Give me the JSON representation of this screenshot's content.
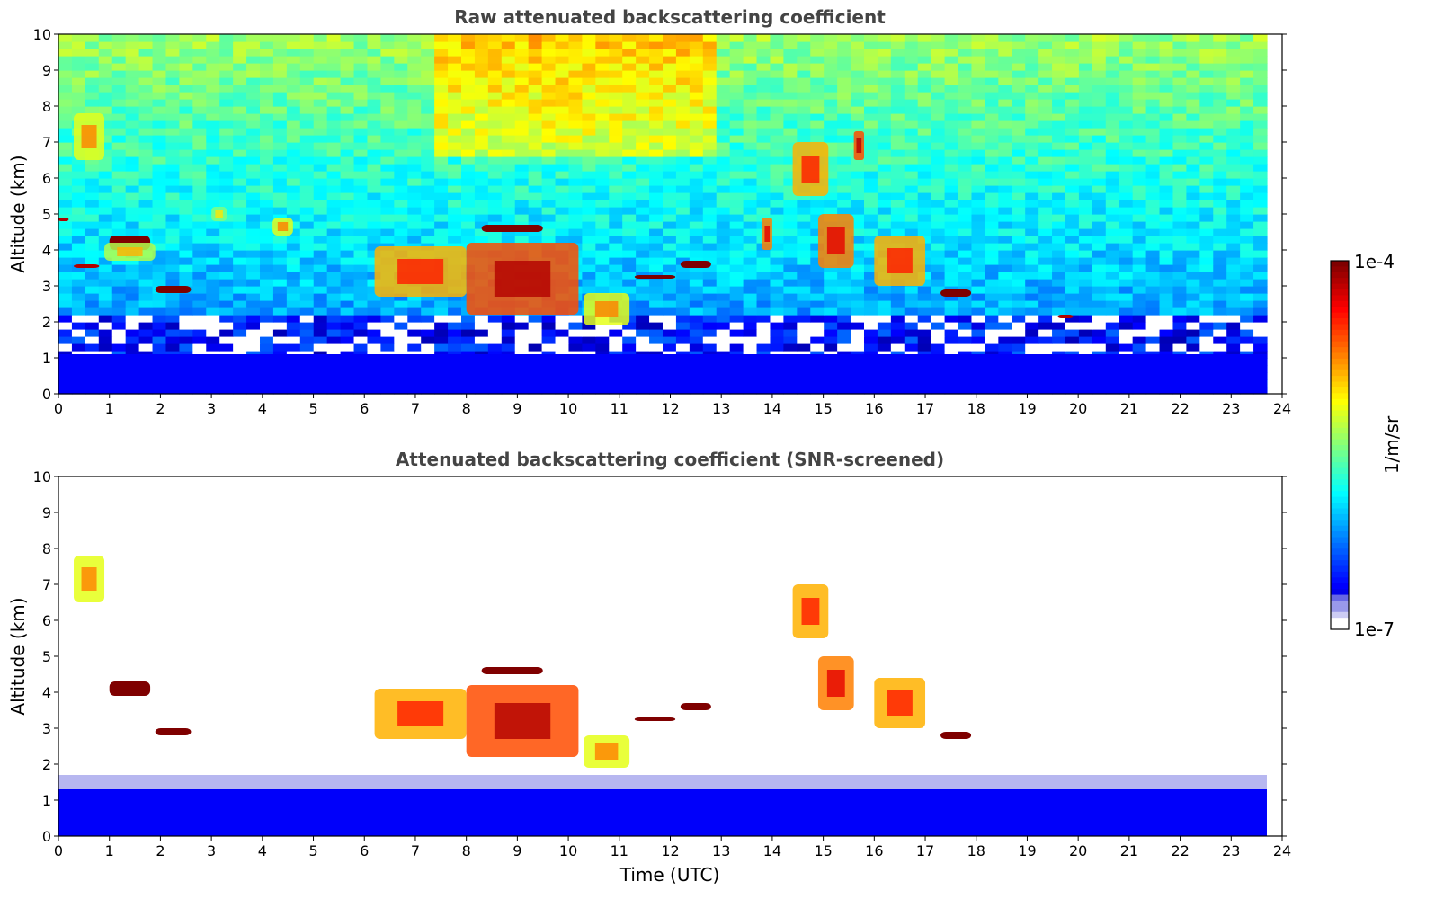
{
  "colors": {
    "jet": [
      "#00007f",
      "#0000ff",
      "#007fff",
      "#00ffff",
      "#7fff7f",
      "#ffff00",
      "#ff7f00",
      "#ff0000",
      "#7f0000"
    ],
    "faint": [
      "#ffffff",
      "#ccccf4",
      "#9999ea",
      "#6666e4"
    ]
  },
  "colorbar": {
    "label": "1/m/sr",
    "max_label": "1e-4",
    "min_label": "1e-7",
    "scale": "log",
    "range": [
      1e-07,
      0.0001
    ]
  },
  "chart_data": [
    {
      "type": "heatmap",
      "title": "Raw attenuated backscattering coefficient",
      "xlabel": "",
      "ylabel": "Altitude (km)",
      "xlim": [
        0,
        24
      ],
      "ylim": [
        0,
        10
      ],
      "xticks": [
        "0",
        "1",
        "2",
        "3",
        "4",
        "5",
        "6",
        "7",
        "8",
        "9",
        "10",
        "11",
        "12",
        "13",
        "14",
        "15",
        "16",
        "17",
        "18",
        "19",
        "20",
        "21",
        "22",
        "23",
        "24"
      ],
      "yticks": [
        "0",
        "1",
        "2",
        "3",
        "4",
        "5",
        "6",
        "7",
        "8",
        "9",
        "10"
      ],
      "data_end_time": 23.7,
      "features": [
        {
          "kind": "boundary_layer",
          "t0": 0,
          "t1": 23.7,
          "z0": 0,
          "z1": 1.1,
          "level": 0.12
        },
        {
          "kind": "layer",
          "t0": 1.0,
          "t1": 1.8,
          "z0": 4.0,
          "z1": 4.4,
          "level": 1.0
        },
        {
          "kind": "layer",
          "t0": 1.9,
          "t1": 2.6,
          "z0": 2.8,
          "z1": 3.0,
          "level": 1.0
        },
        {
          "kind": "layer",
          "t0": 0.3,
          "t1": 0.8,
          "z0": 3.5,
          "z1": 3.6,
          "level": 0.95
        },
        {
          "kind": "layer",
          "t0": 0.0,
          "t1": 0.2,
          "z0": 4.8,
          "z1": 4.9,
          "level": 0.95
        },
        {
          "kind": "layer",
          "t0": 8.3,
          "t1": 9.5,
          "z0": 4.5,
          "z1": 4.7,
          "level": 1.0
        },
        {
          "kind": "layer",
          "t0": 11.3,
          "t1": 12.1,
          "z0": 3.2,
          "z1": 3.3,
          "level": 1.0
        },
        {
          "kind": "layer",
          "t0": 12.2,
          "t1": 12.8,
          "z0": 3.5,
          "z1": 3.7,
          "level": 1.0
        },
        {
          "kind": "layer",
          "t0": 17.3,
          "t1": 17.9,
          "z0": 2.7,
          "z1": 2.9,
          "level": 1.0
        },
        {
          "kind": "layer",
          "t0": 19.6,
          "t1": 19.9,
          "z0": 2.1,
          "z1": 2.2,
          "level": 0.95
        },
        {
          "kind": "cloud",
          "t0": 0.3,
          "t1": 0.9,
          "z0": 6.5,
          "z1": 7.8,
          "level": 0.6
        },
        {
          "kind": "cloud",
          "t0": 0.9,
          "t1": 1.9,
          "z0": 3.7,
          "z1": 4.2,
          "level": 0.55
        },
        {
          "kind": "cloud",
          "t0": 4.2,
          "t1": 4.6,
          "z0": 4.4,
          "z1": 4.9,
          "level": 0.6
        },
        {
          "kind": "cloud",
          "t0": 3.0,
          "t1": 3.3,
          "z0": 4.8,
          "z1": 5.2,
          "level": 0.5
        },
        {
          "kind": "cloud",
          "t0": 6.2,
          "t1": 8.0,
          "z0": 2.7,
          "z1": 4.1,
          "level": 0.7
        },
        {
          "kind": "cloud",
          "t0": 8.0,
          "t1": 10.2,
          "z0": 2.2,
          "z1": 4.2,
          "level": 0.8
        },
        {
          "kind": "cloud",
          "t0": 10.3,
          "t1": 11.2,
          "z0": 1.9,
          "z1": 2.8,
          "level": 0.6
        },
        {
          "kind": "cloud",
          "t0": 13.8,
          "t1": 14.0,
          "z0": 4.0,
          "z1": 4.9,
          "level": 0.75
        },
        {
          "kind": "cloud",
          "t0": 14.4,
          "t1": 15.1,
          "z0": 5.5,
          "z1": 7.0,
          "level": 0.7
        },
        {
          "kind": "cloud",
          "t0": 14.9,
          "t1": 15.6,
          "z0": 3.5,
          "z1": 5.0,
          "level": 0.75
        },
        {
          "kind": "cloud",
          "t0": 15.6,
          "t1": 15.8,
          "z0": 6.5,
          "z1": 7.3,
          "level": 0.8
        },
        {
          "kind": "cloud",
          "t0": 16.0,
          "t1": 17.0,
          "z0": 3.0,
          "z1": 4.4,
          "level": 0.7
        }
      ]
    },
    {
      "type": "heatmap",
      "title": "Attenuated backscattering coefficient (SNR-screened)",
      "xlabel": "Time (UTC)",
      "ylabel": "Altitude (km)",
      "xlim": [
        0,
        24
      ],
      "ylim": [
        0,
        10
      ],
      "xticks": [
        "0",
        "1",
        "2",
        "3",
        "4",
        "5",
        "6",
        "7",
        "8",
        "9",
        "10",
        "11",
        "12",
        "13",
        "14",
        "15",
        "16",
        "17",
        "18",
        "19",
        "20",
        "21",
        "22",
        "23",
        "24"
      ],
      "yticks": [
        "0",
        "1",
        "2",
        "3",
        "4",
        "5",
        "6",
        "7",
        "8",
        "9",
        "10"
      ],
      "data_end_time": 23.7,
      "features": [
        {
          "kind": "boundary_layer",
          "t0": 0,
          "t1": 23.7,
          "z0": 0,
          "z1": 1.3,
          "level": 0.12
        },
        {
          "kind": "layer",
          "t0": 1.0,
          "t1": 1.8,
          "z0": 3.9,
          "z1": 4.3,
          "level": 1.0
        },
        {
          "kind": "layer",
          "t0": 1.9,
          "t1": 2.6,
          "z0": 2.8,
          "z1": 3.0,
          "level": 1.0
        },
        {
          "kind": "layer",
          "t0": 8.3,
          "t1": 9.5,
          "z0": 4.5,
          "z1": 4.7,
          "level": 1.0
        },
        {
          "kind": "layer",
          "t0": 11.3,
          "t1": 12.1,
          "z0": 3.2,
          "z1": 3.3,
          "level": 1.0
        },
        {
          "kind": "layer",
          "t0": 12.2,
          "t1": 12.8,
          "z0": 3.5,
          "z1": 3.7,
          "level": 1.0
        },
        {
          "kind": "layer",
          "t0": 17.3,
          "t1": 17.9,
          "z0": 2.7,
          "z1": 2.9,
          "level": 1.0
        },
        {
          "kind": "cloud",
          "t0": 0.3,
          "t1": 0.9,
          "z0": 6.5,
          "z1": 7.8,
          "level": 0.6
        },
        {
          "kind": "cloud",
          "t0": 6.2,
          "t1": 8.0,
          "z0": 2.7,
          "z1": 4.1,
          "level": 0.7
        },
        {
          "kind": "cloud",
          "t0": 8.0,
          "t1": 10.2,
          "z0": 2.2,
          "z1": 4.2,
          "level": 0.8
        },
        {
          "kind": "cloud",
          "t0": 10.3,
          "t1": 11.2,
          "z0": 1.9,
          "z1": 2.8,
          "level": 0.6
        },
        {
          "kind": "cloud",
          "t0": 14.4,
          "t1": 15.1,
          "z0": 5.5,
          "z1": 7.0,
          "level": 0.7
        },
        {
          "kind": "cloud",
          "t0": 14.9,
          "t1": 15.6,
          "z0": 3.5,
          "z1": 5.0,
          "level": 0.75
        },
        {
          "kind": "cloud",
          "t0": 16.0,
          "t1": 17.0,
          "z0": 3.0,
          "z1": 4.4,
          "level": 0.7
        }
      ]
    }
  ]
}
